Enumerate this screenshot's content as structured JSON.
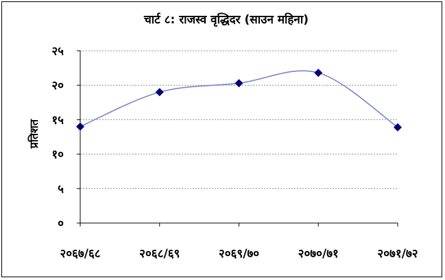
{
  "chart_data": {
    "type": "line",
    "title": "चार्ट ८: राजस्व वृद्धिदर (साउन महिना)",
    "xlabel": "",
    "ylabel": "प्रतिशत",
    "categories": [
      "२०६७/६८",
      "२०६८/६९",
      "२०६९/७०",
      "२०७०/७१",
      "२०७१/७२"
    ],
    "values": [
      14.0,
      19.0,
      20.3,
      21.8,
      13.9
    ],
    "ylim": [
      0,
      25
    ],
    "yticks": [
      0,
      5,
      10,
      15,
      20,
      25
    ],
    "ytick_labels": [
      "०",
      "५",
      "१०",
      "१५",
      "२०",
      "२५"
    ],
    "grid": true,
    "legend": "none",
    "line_color": "#7B86C6",
    "marker_color": "#00007A",
    "marker": "diamond"
  }
}
